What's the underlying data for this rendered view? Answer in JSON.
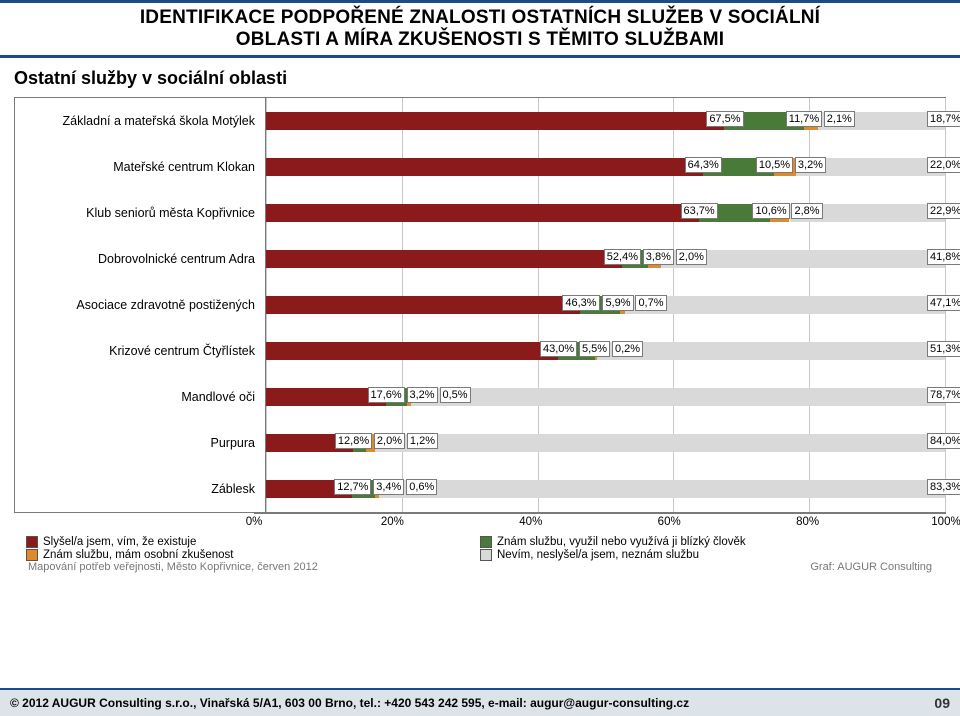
{
  "header": {
    "line1": "IDENTIFIKACE PODPOŘENÉ ZNALOSTI OSTATNÍCH SLUŽEB V SOCIÁLNÍ",
    "line2": "OBLASTI A MÍRA ZKUŠENOSTI S TĚMITO SLUŽBAMI"
  },
  "chart": {
    "type": "stacked-horizontal-bar",
    "title": "Ostatní služby v sociální oblasti",
    "xmax": 100,
    "xticks": [
      0,
      20,
      40,
      60,
      80,
      100
    ],
    "xtick_labels": [
      "0%",
      "20%",
      "40%",
      "60%",
      "80%",
      "100%"
    ],
    "series_colors": [
      "#8b1a1a",
      "#4a7a3a",
      "#e08a2a",
      "#d9d9d9"
    ],
    "label_bg": "#ffffff",
    "label_border": "#7a7a7a",
    "grid_color": "#c8c8c8",
    "plot_border": "#7a7a7a",
    "font_size_axis": 12.5,
    "font_size_value": 11,
    "legend": [
      "Slyšel/a jsem, vím, že existuje",
      "Znám službu, využil nebo využívá ji blízký člověk",
      "Znám službu, mám osobní zkušenost",
      "Nevím, neslyšel/a jsem, neznám službu"
    ],
    "categories": [
      {
        "label": "Základní a mateřská škola Motýlek",
        "values": [
          67.5,
          11.7,
          2.1,
          18.7
        ],
        "value_labels": [
          "67,5%",
          "11,7%",
          "2,1%",
          "18,7%"
        ]
      },
      {
        "label": "Mateřské centrum Klokan",
        "values": [
          64.3,
          10.5,
          3.2,
          22.0
        ],
        "value_labels": [
          "64,3%",
          "10,5%",
          "3,2%",
          "22,0%"
        ]
      },
      {
        "label": "Klub seniorů města Kopřivnice",
        "values": [
          63.7,
          10.6,
          2.8,
          22.9
        ],
        "value_labels": [
          "63,7%",
          "10,6%",
          "2,8%",
          "22,9%"
        ]
      },
      {
        "label": "Dobrovolnické centrum Adra",
        "values": [
          52.4,
          3.8,
          2.0,
          41.8
        ],
        "value_labels": [
          "52,4%",
          "3,8%",
          "2,0%",
          "41,8%"
        ]
      },
      {
        "label": "Asociace zdravotně postižených",
        "values": [
          46.3,
          5.9,
          0.7,
          47.1
        ],
        "value_labels": [
          "46,3%",
          "5,9%",
          "0,7%",
          "47,1%"
        ]
      },
      {
        "label": "Krizové centrum Čtyřlístek",
        "values": [
          43.0,
          5.5,
          0.2,
          51.3
        ],
        "value_labels": [
          "43,0%",
          "5,5%",
          "0,2%",
          "51,3%"
        ]
      },
      {
        "label": "Mandlové oči",
        "values": [
          17.6,
          3.2,
          0.5,
          78.7
        ],
        "value_labels": [
          "17,6%",
          "3,2%",
          "0,5%",
          "78,7%"
        ]
      },
      {
        "label": "Purpura",
        "values": [
          12.8,
          2.0,
          1.2,
          84.0
        ],
        "value_labels": [
          "12,8%",
          "2,0%",
          "1,2%",
          "84,0%"
        ]
      },
      {
        "label": "Záblesk",
        "values": [
          12.7,
          3.4,
          0.6,
          83.3
        ],
        "value_labels": [
          "12,7%",
          "3,4%",
          "0,6%",
          "83,3%"
        ]
      }
    ]
  },
  "subfooter": {
    "left": "Mapování potřeb veřejnosti, Město Kopřivnice, červen 2012",
    "right": "Graf: AUGUR Consulting"
  },
  "footer": {
    "text": "© 2012 AUGUR Consulting s.r.o., Vinařská 5/A1, 603 00 Brno, tel.: +420 543 242 595, e-mail: augur@augur-consulting.cz",
    "page": "09"
  }
}
